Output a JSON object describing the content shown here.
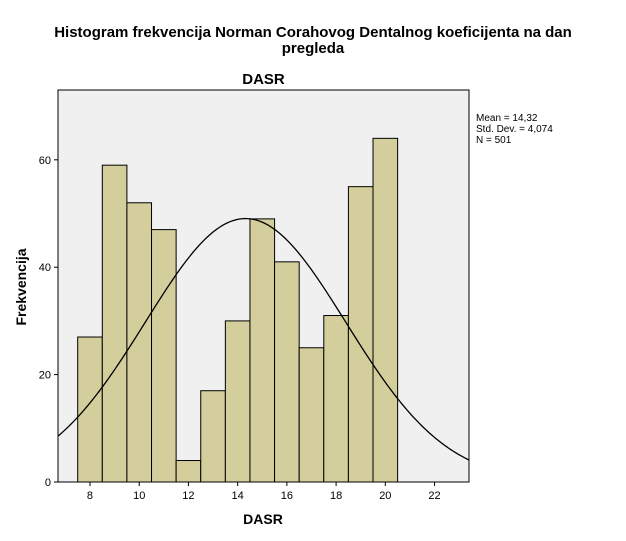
{
  "chart_data": {
    "type": "bar",
    "title_lines": [
      "Histogram frekvencija Norman Corahovog Dentalnog koeficijenta na dan",
      "pregleda"
    ],
    "subtitle": "DASR",
    "xlabel": "DASR",
    "ylabel": "Frekvencija",
    "x_ticks": [
      "8",
      "10",
      "12",
      "14",
      "16",
      "18",
      "20",
      "22"
    ],
    "y_ticks": [
      "0",
      "20",
      "40",
      "60"
    ],
    "bin_width": 1,
    "bins": [
      {
        "x": 8,
        "count": 27
      },
      {
        "x": 9,
        "count": 59
      },
      {
        "x": 10,
        "count": 52
      },
      {
        "x": 11,
        "count": 47
      },
      {
        "x": 12,
        "count": 4
      },
      {
        "x": 13,
        "count": 17
      },
      {
        "x": 14,
        "count": 30
      },
      {
        "x": 15,
        "count": 49
      },
      {
        "x": 16,
        "count": 41
      },
      {
        "x": 17,
        "count": 25
      },
      {
        "x": 18,
        "count": 31
      },
      {
        "x": 19,
        "count": 55
      },
      {
        "x": 20,
        "count": 64
      }
    ],
    "xlim": [
      6.7,
      23.4
    ],
    "ylim": [
      0,
      73
    ],
    "normal_curve": {
      "mean": 14.32,
      "sd": 4.074,
      "n": 501
    },
    "stats": {
      "mean": "Mean = 14,32",
      "sd": "Std. Dev. = 4,074",
      "n": "N = 501"
    },
    "colors": {
      "bar_fill": "#d3ce9b",
      "bar_stroke": "#000000",
      "plot_bg": "#f0f0f0",
      "curve": "#000000"
    }
  }
}
